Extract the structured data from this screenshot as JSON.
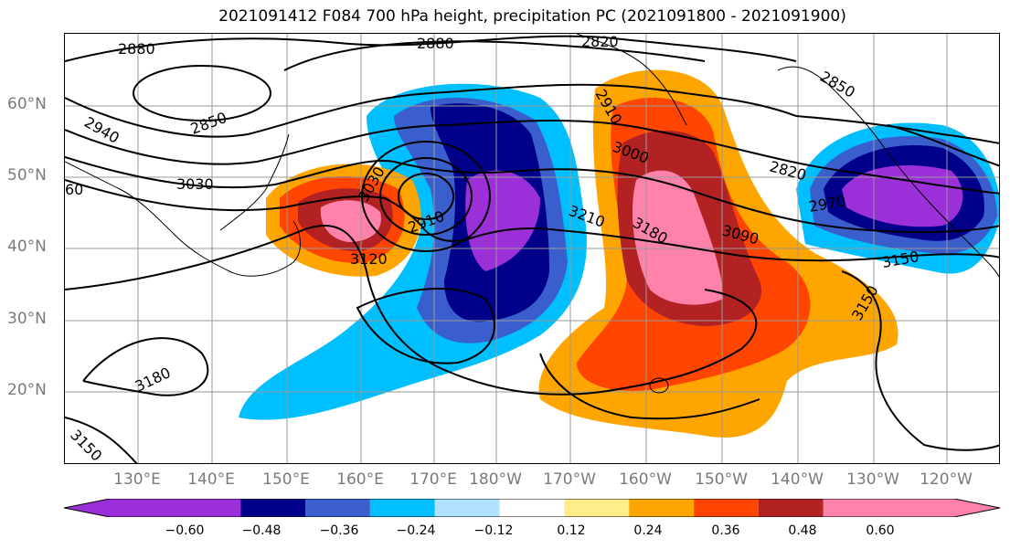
{
  "title": "2021091412 F084 700 hPa height, precipitation PC (2021091800 - 2021091900)",
  "latitude_labels": [
    {
      "text": "60°N",
      "lat": 60
    },
    {
      "text": "50°N",
      "lat": 50
    },
    {
      "text": "40°N",
      "lat": 40
    },
    {
      "text": "30°N",
      "lat": 30
    },
    {
      "text": "20°N",
      "lat": 20
    }
  ],
  "longitude_labels": [
    "130°E",
    "140°E",
    "150°E",
    "160°E",
    "170°E",
    "180°W",
    "170°W",
    "160°W",
    "150°W",
    "140°W",
    "130°W",
    "120°W"
  ],
  "colorbar": {
    "ticks": [
      "−0.60",
      "−0.48",
      "−0.36",
      "−0.24",
      "−0.12",
      "0.12",
      "0.24",
      "0.36",
      "0.48",
      "0.60"
    ],
    "colors": [
      "#9b30d9",
      "#00008b",
      "#3a5fcd",
      "#00bfff",
      "#b0e2ff",
      "#ffffff",
      "#ffec8b",
      "#ffa500",
      "#ff4500",
      "#b22222",
      "#ff82ab"
    ]
  },
  "contour_labels": {
    "l2880a": "2880",
    "l2880b": "2880",
    "l2820a": "2820",
    "l2940": "2940",
    "l2850a": "2850",
    "l3030": "3030",
    "l60": "60",
    "l3030b": "3030",
    "l2910": "2910",
    "l2910b": "2910",
    "l3000": "3000",
    "l2850b": "2850",
    "l2820b": "2820",
    "l3210": "3210",
    "l3180a": "3180",
    "l3090": "3090",
    "l2970": "2970",
    "l3120": "3120",
    "l3150a": "3150",
    "l3150b": "3150",
    "l3180b": "3180",
    "l3150c": "3150"
  }
}
